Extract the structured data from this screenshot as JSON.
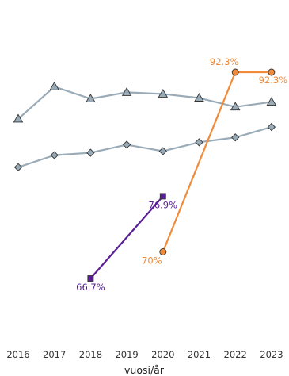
{
  "chart_data": {
    "type": "line",
    "title": "",
    "xlabel": "vuosi/år",
    "ylabel": "",
    "x": [
      2016,
      2017,
      2018,
      2019,
      2020,
      2021,
      2022,
      2023
    ],
    "ylim": [
      50,
      100
    ],
    "grid": false,
    "legend": "none",
    "series": [
      {
        "key": "grey-triangles",
        "color": "#9aabb8",
        "marker": "triangle",
        "x": [
          2016,
          2017,
          2018,
          2019,
          2020,
          2021,
          2022,
          2023
        ],
        "values": [
          86.5,
          90.5,
          89.0,
          89.8,
          89.6,
          89.1,
          88.0,
          88.6
        ],
        "labels": [
          null,
          null,
          null,
          null,
          null,
          null,
          null,
          null
        ]
      },
      {
        "key": "grey-diamonds",
        "color": "#9aabb8",
        "marker": "diamond",
        "x": [
          2016,
          2017,
          2018,
          2019,
          2020,
          2021,
          2022,
          2023
        ],
        "values": [
          80.5,
          82.0,
          82.3,
          83.3,
          82.5,
          83.6,
          84.2,
          85.5
        ],
        "labels": [
          null,
          null,
          null,
          null,
          null,
          null,
          null,
          null
        ]
      },
      {
        "key": "purple-squares",
        "color": "#5a1f95",
        "marker": "square",
        "x": [
          2018,
          2020
        ],
        "values": [
          66.7,
          76.9
        ],
        "labels": [
          "66.7%",
          "76.9%"
        ]
      },
      {
        "key": "orange-circles",
        "color": "#ef8b3a",
        "marker": "circle",
        "x": [
          2020,
          2022,
          2023
        ],
        "values": [
          70,
          92.3,
          92.3
        ],
        "labels": [
          "70%",
          "92.3%",
          "92.3%"
        ]
      }
    ]
  }
}
